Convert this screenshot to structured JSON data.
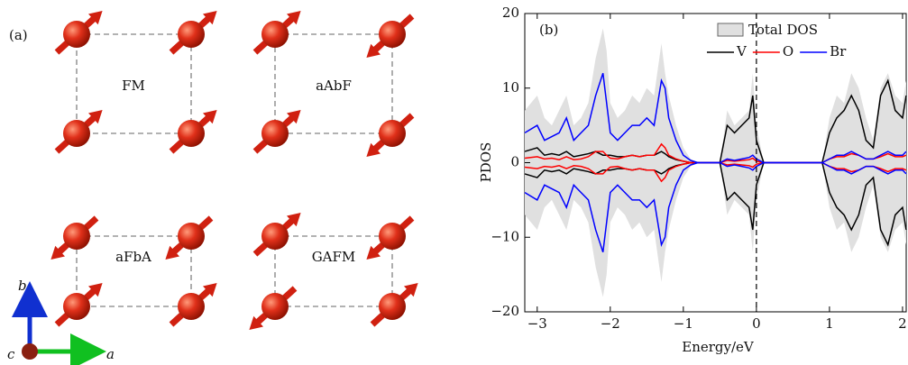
{
  "panel_a": {
    "label": "(a)",
    "configs": [
      "FM",
      "aAbF",
      "aFbA",
      "GAFM"
    ],
    "axes": {
      "a": "a",
      "b": "b",
      "c": "c"
    }
  },
  "chart_data": {
    "type": "line",
    "panel_label": "(b)",
    "xlabel": "Energy/eV",
    "ylabel": "PDOS",
    "xlim": [
      -3.17,
      2.05
    ],
    "ylim": [
      -20,
      20
    ],
    "xticks": [
      {
        "value": -3,
        "label": "−3"
      },
      {
        "value": -2,
        "label": "−2"
      },
      {
        "value": -1,
        "label": "−1"
      },
      0,
      1,
      2
    ],
    "yticks": [
      {
        "value": -20,
        "label": "−20"
      },
      {
        "value": -10,
        "label": "−10"
      },
      0,
      10,
      20
    ],
    "vline": 0,
    "spin_mirror": true,
    "x": [
      -3.17,
      -3.0,
      -2.9,
      -2.8,
      -2.7,
      -2.6,
      -2.5,
      -2.4,
      -2.3,
      -2.2,
      -2.1,
      -2.05,
      -2.0,
      -1.9,
      -1.8,
      -1.7,
      -1.6,
      -1.5,
      -1.4,
      -1.3,
      -1.25,
      -1.2,
      -1.1,
      -1.0,
      -0.9,
      -0.8,
      -0.5,
      -0.4,
      -0.3,
      -0.2,
      -0.1,
      -0.05,
      0.0,
      0.1,
      0.9,
      1.0,
      1.1,
      1.2,
      1.3,
      1.4,
      1.5,
      1.6,
      1.7,
      1.8,
      1.9,
      2.0,
      2.05
    ],
    "series": [
      {
        "name": "Total DOS",
        "color": "#e0e0e0",
        "kind": "area",
        "values": [
          7,
          9,
          6,
          5,
          7,
          9,
          5,
          6,
          8,
          14,
          18,
          15,
          8,
          6,
          7,
          9,
          8,
          10,
          9,
          16,
          12,
          9,
          5,
          2,
          0.5,
          0,
          0,
          7,
          5,
          6,
          7,
          12,
          5,
          0,
          0,
          6,
          9,
          8,
          12,
          10,
          6,
          3,
          10,
          12,
          9,
          8,
          11
        ]
      },
      {
        "name": "V",
        "color": "#000000",
        "kind": "line",
        "values": [
          1.5,
          2,
          1,
          1.2,
          1,
          1.5,
          0.8,
          1,
          1.2,
          1.5,
          1,
          1,
          1,
          0.8,
          0.8,
          1,
          0.8,
          1,
          1,
          1.5,
          1.2,
          0.8,
          0.4,
          0.2,
          0,
          0,
          0,
          5,
          4,
          5,
          6,
          9,
          3,
          0,
          0,
          4,
          6,
          7,
          9,
          7,
          3,
          2,
          9,
          11,
          7,
          6,
          9
        ]
      },
      {
        "name": "O",
        "color": "#ff0000",
        "kind": "line",
        "values": [
          0.6,
          0.8,
          0.5,
          0.6,
          0.4,
          0.8,
          0.4,
          0.5,
          0.8,
          1.5,
          1.5,
          1,
          0.6,
          0.5,
          0.8,
          1,
          0.8,
          1,
          1,
          2.5,
          2,
          1,
          0.5,
          0.2,
          0,
          0,
          0,
          0.3,
          0.2,
          0.3,
          0.4,
          0.6,
          0.2,
          0,
          0,
          0.5,
          0.8,
          0.8,
          1.2,
          1,
          0.5,
          0.5,
          0.8,
          1.2,
          0.8,
          0.8,
          1
        ]
      },
      {
        "name": "Br",
        "color": "#0000ff",
        "kind": "line",
        "values": [
          4,
          5,
          3,
          3.5,
          4,
          6,
          3,
          4,
          5,
          9,
          12,
          8,
          4,
          3,
          4,
          5,
          5,
          6,
          5,
          11,
          10,
          6,
          3,
          1,
          0.3,
          0,
          0,
          0.5,
          0.3,
          0.5,
          0.7,
          1,
          0.5,
          0,
          0,
          0.5,
          1,
          1,
          1.5,
          1,
          0.5,
          0.5,
          1,
          1.5,
          1,
          1,
          1.5
        ]
      }
    ]
  }
}
